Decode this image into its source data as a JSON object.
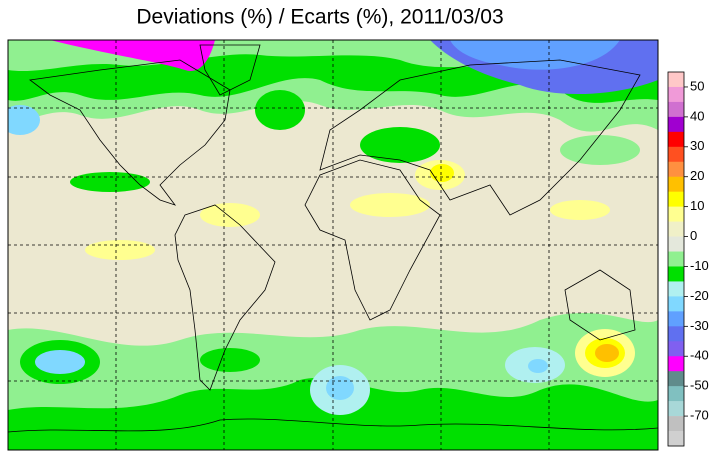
{
  "title": "Deviations (%) / Ecarts (%), 2011/03/03",
  "legend": {
    "labels": [
      50,
      40,
      30,
      20,
      10,
      0,
      -10,
      -20,
      -30,
      -40,
      -50,
      -70
    ],
    "colors": [
      "#ffc8c8",
      "#f09ad8",
      "#d070d0",
      "#a000d0",
      "#ff0000",
      "#ff5020",
      "#ff9040",
      "#ffc000",
      "#ffff00",
      "#ffff90",
      "#f0f0c8",
      "#e4e8dc",
      "#90f090",
      "#00e000",
      "#b0f0f0",
      "#80d8ff",
      "#60a0ff",
      "#6070f0",
      "#8060f0",
      "#ff00ff",
      "#608c8c",
      "#80c0c0",
      "#a8d8d8",
      "#c0c0c0",
      "#d0d0d0"
    ]
  }
}
